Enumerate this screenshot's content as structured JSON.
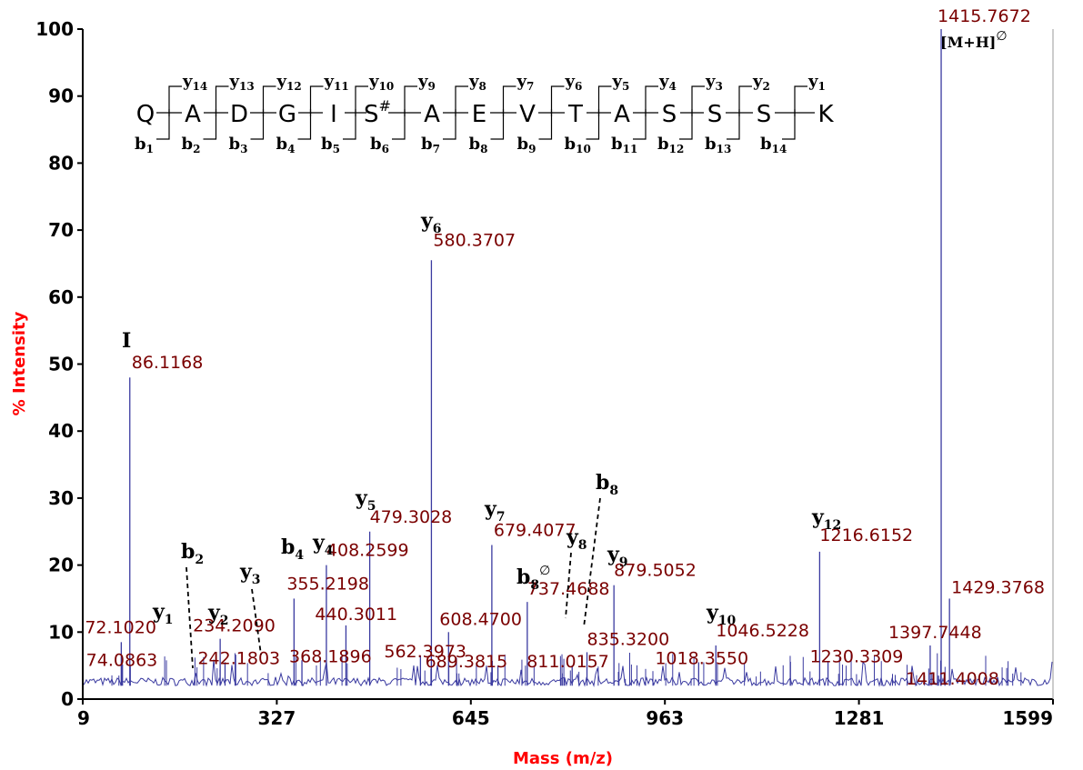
{
  "chart_data": {
    "type": "line",
    "xlabel": "Mass (m/z)",
    "ylabel": "% Intensity",
    "xlim": [
      9,
      1599
    ],
    "ylim": [
      0,
      100
    ],
    "x_ticks": [
      "9",
      "327",
      "645",
      "963",
      "1281",
      "1599"
    ],
    "y_ticks": [
      "0",
      "10",
      "20",
      "30",
      "40",
      "50",
      "60",
      "70",
      "80",
      "90",
      "100"
    ],
    "baseline_intensity": 2,
    "peaks": [
      {
        "mz": 72.102,
        "intensity": 8.5,
        "label": "72.1020"
      },
      {
        "mz": 74.0863,
        "intensity": 5.2,
        "label": "74.0863"
      },
      {
        "mz": 86.1168,
        "intensity": 48,
        "label": "86.1168"
      },
      {
        "mz": 234.209,
        "intensity": 9,
        "label": "234.2090"
      },
      {
        "mz": 242.1803,
        "intensity": 5.5,
        "label": "242.1803"
      },
      {
        "mz": 355.2198,
        "intensity": 15,
        "label": "355.2198"
      },
      {
        "mz": 368.1896,
        "intensity": 5.8,
        "label": "368.1896"
      },
      {
        "mz": 408.2599,
        "intensity": 20,
        "label": "408.2599"
      },
      {
        "mz": 440.3011,
        "intensity": 11,
        "label": "440.3011"
      },
      {
        "mz": 479.3028,
        "intensity": 25,
        "label": "479.3028"
      },
      {
        "mz": 562.3973,
        "intensity": 6.5,
        "label": "562.3973"
      },
      {
        "mz": 580.3707,
        "intensity": 65.5,
        "label": "580.3707"
      },
      {
        "mz": 608.47,
        "intensity": 10,
        "label": "608.4700"
      },
      {
        "mz": 679.4077,
        "intensity": 23,
        "label": "679.4077"
      },
      {
        "mz": 689.3815,
        "intensity": 5,
        "label": "689.3815"
      },
      {
        "mz": 737.4688,
        "intensity": 14.5,
        "label": "737.4688"
      },
      {
        "mz": 811.0157,
        "intensity": 5,
        "label": "811.0157"
      },
      {
        "mz": 835.32,
        "intensity": 7,
        "label": "835.3200"
      },
      {
        "mz": 879.5052,
        "intensity": 17,
        "label": "879.5052"
      },
      {
        "mz": 1018.355,
        "intensity": 5.5,
        "label": "1018.3550"
      },
      {
        "mz": 1046.5228,
        "intensity": 8,
        "label": "1046.5228"
      },
      {
        "mz": 1216.6152,
        "intensity": 22,
        "label": "1216.6152"
      },
      {
        "mz": 1230.3309,
        "intensity": 5.5,
        "label": "1230.3309"
      },
      {
        "mz": 1397.7448,
        "intensity": 8,
        "label": "1397.7448"
      },
      {
        "mz": 1411.4008,
        "intensity": 3.5,
        "label": "1411.4008"
      },
      {
        "mz": 1415.7672,
        "intensity": 100,
        "label": "1415.7672"
      },
      {
        "mz": 1429.3768,
        "intensity": 15,
        "label": "1429.3768"
      }
    ],
    "ion_annotations": [
      {
        "ion": "I",
        "sub": "",
        "sup": "",
        "mz": 86.1168
      },
      {
        "ion": "y",
        "sub": "1",
        "sup": "",
        "mz": 147.1
      },
      {
        "ion": "b",
        "sub": "2",
        "sup": "",
        "mz": 201.1
      },
      {
        "ion": "y",
        "sub": "2",
        "sup": "",
        "mz": 234.209
      },
      {
        "ion": "y",
        "sub": "3",
        "sup": "",
        "mz": 321.2
      },
      {
        "ion": "b",
        "sub": "4",
        "sup": "",
        "mz": 355.2198
      },
      {
        "ion": "y",
        "sub": "4",
        "sup": "",
        "mz": 408.2599
      },
      {
        "ion": "y",
        "sub": "5",
        "sup": "",
        "mz": 479.3028
      },
      {
        "ion": "y",
        "sub": "6",
        "sup": "",
        "mz": 580.3707
      },
      {
        "ion": "y",
        "sub": "7",
        "sup": "",
        "mz": 679.4077
      },
      {
        "ion": "b",
        "sub": "8",
        "sup": "∅",
        "mz": 737.4688
      },
      {
        "ion": "y",
        "sub": "8",
        "sup": "",
        "mz": 780.4
      },
      {
        "ion": "b",
        "sub": "8",
        "sup": "",
        "mz": 835.32
      },
      {
        "ion": "y",
        "sub": "9",
        "sup": "",
        "mz": 879.5052
      },
      {
        "ion": "y",
        "sub": "10",
        "sup": "",
        "mz": 1018.355
      },
      {
        "ion": "y",
        "sub": "12",
        "sup": "",
        "mz": 1216.6152
      },
      {
        "ion": "[M+H]",
        "sub": "",
        "sup": "∅",
        "mz": 1415.7672
      }
    ],
    "sequence": {
      "residues": [
        "Q",
        "A",
        "D",
        "G",
        "I",
        "S#",
        "A",
        "E",
        "V",
        "T",
        "A",
        "S",
        "S",
        "S",
        "K"
      ],
      "y_ions": [
        "y14",
        "y13",
        "y12",
        "y11",
        "y10",
        "y9",
        "y8",
        "y7",
        "y6",
        "y5",
        "y4",
        "y3",
        "y2",
        "y1"
      ],
      "b_ions": [
        "b1",
        "b2",
        "b3",
        "b4",
        "b5",
        "b6",
        "b7",
        "b8",
        "b9",
        "b10",
        "b11",
        "b12",
        "b13",
        "b14"
      ]
    }
  },
  "colors": {
    "spectrum": "#3a3aa0",
    "mass_label": "#7a0000",
    "axis_title": "#ff0000"
  }
}
